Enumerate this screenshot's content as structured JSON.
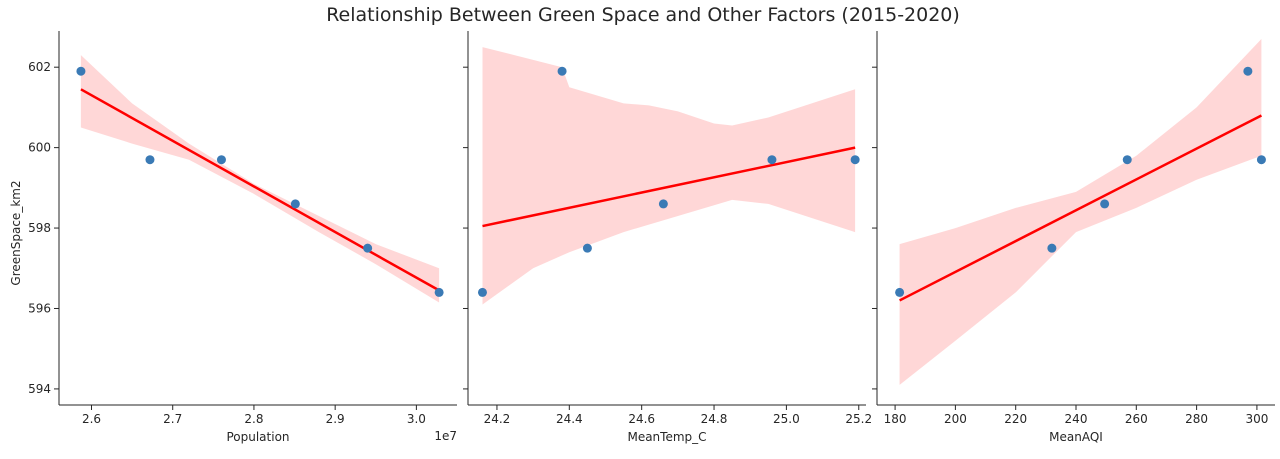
{
  "chart_data": {
    "type": "scatter",
    "title": "Relationship Between Green Space and Other Factors (2015-2020)",
    "ylabel": "GreenSpace_km2",
    "ylim": [
      593.6,
      602.9
    ],
    "yticks": [
      594,
      596,
      598,
      600,
      602
    ],
    "ytick_labels": [
      "594",
      "596",
      "598",
      "600",
      "602"
    ],
    "colors": {
      "points": "#3a7ab5",
      "fit_line": "#ff0000",
      "band": "#ff9c9c"
    },
    "panels": [
      {
        "xlabel": "Population",
        "offset_text": "1e7",
        "xlim": [
          2.56,
          3.05
        ],
        "xticks": [
          2.6,
          2.7,
          2.8,
          2.9,
          3.0
        ],
        "xtick_labels": [
          "2.6",
          "2.7",
          "2.8",
          "2.9",
          "3.0"
        ],
        "points": [
          {
            "x": 2.587,
            "y": 601.9
          },
          {
            "x": 2.672,
            "y": 599.7
          },
          {
            "x": 2.76,
            "y": 599.7
          },
          {
            "x": 2.851,
            "y": 598.6
          },
          {
            "x": 2.94,
            "y": 597.5
          },
          {
            "x": 3.028,
            "y": 596.4
          }
        ],
        "fit": [
          {
            "x": 2.587,
            "y": 601.45
          },
          {
            "x": 3.028,
            "y": 596.45
          }
        ],
        "band_upper": [
          {
            "x": 2.587,
            "y": 602.3
          },
          {
            "x": 2.65,
            "y": 601.1
          },
          {
            "x": 2.72,
            "y": 600.1
          },
          {
            "x": 2.8,
            "y": 599.1
          },
          {
            "x": 2.88,
            "y": 598.3
          },
          {
            "x": 2.95,
            "y": 597.6
          },
          {
            "x": 3.028,
            "y": 597.0
          }
        ],
        "band_lower": [
          {
            "x": 3.028,
            "y": 596.15
          },
          {
            "x": 2.95,
            "y": 597.1
          },
          {
            "x": 2.88,
            "y": 597.9
          },
          {
            "x": 2.8,
            "y": 598.85
          },
          {
            "x": 2.72,
            "y": 599.7
          },
          {
            "x": 2.65,
            "y": 600.1
          },
          {
            "x": 2.587,
            "y": 600.5
          }
        ]
      },
      {
        "xlabel": "MeanTemp_C",
        "offset_text": "",
        "xlim": [
          24.12,
          25.22
        ],
        "xticks": [
          24.2,
          24.4,
          24.6,
          24.8,
          25.0,
          25.2
        ],
        "xtick_labels": [
          "24.2",
          "24.4",
          "24.6",
          "24.8",
          "25.0",
          "25.2"
        ],
        "points": [
          {
            "x": 24.16,
            "y": 596.4
          },
          {
            "x": 24.38,
            "y": 601.9
          },
          {
            "x": 24.45,
            "y": 597.5
          },
          {
            "x": 24.66,
            "y": 598.6
          },
          {
            "x": 24.96,
            "y": 599.7
          },
          {
            "x": 25.19,
            "y": 599.7
          }
        ],
        "fit": [
          {
            "x": 24.16,
            "y": 598.05
          },
          {
            "x": 25.19,
            "y": 600.0
          }
        ],
        "band_upper": [
          {
            "x": 24.16,
            "y": 602.5
          },
          {
            "x": 24.38,
            "y": 602.0
          },
          {
            "x": 24.4,
            "y": 601.5
          },
          {
            "x": 24.55,
            "y": 601.1
          },
          {
            "x": 24.62,
            "y": 601.05
          },
          {
            "x": 24.7,
            "y": 600.9
          },
          {
            "x": 24.8,
            "y": 600.6
          },
          {
            "x": 24.85,
            "y": 600.55
          },
          {
            "x": 24.95,
            "y": 600.75
          },
          {
            "x": 25.19,
            "y": 601.45
          }
        ],
        "band_lower": [
          {
            "x": 25.19,
            "y": 597.9
          },
          {
            "x": 24.95,
            "y": 598.6
          },
          {
            "x": 24.85,
            "y": 598.7
          },
          {
            "x": 24.7,
            "y": 598.3
          },
          {
            "x": 24.55,
            "y": 597.9
          },
          {
            "x": 24.4,
            "y": 597.4
          },
          {
            "x": 24.3,
            "y": 597.0
          },
          {
            "x": 24.16,
            "y": 596.1
          }
        ]
      },
      {
        "xlabel": "MeanAQI",
        "offset_text": "",
        "xlim": [
          174,
          306
        ],
        "xticks": [
          180,
          200,
          220,
          240,
          260,
          280,
          300
        ],
        "xtick_labels": [
          "180",
          "200",
          "220",
          "240",
          "260",
          "280",
          "300"
        ],
        "points": [
          {
            "x": 181.5,
            "y": 596.4
          },
          {
            "x": 232,
            "y": 597.5
          },
          {
            "x": 249.5,
            "y": 598.6
          },
          {
            "x": 257,
            "y": 599.7
          },
          {
            "x": 297,
            "y": 601.9
          },
          {
            "x": 301.5,
            "y": 599.7
          }
        ],
        "fit": [
          {
            "x": 181.5,
            "y": 596.2
          },
          {
            "x": 301.5,
            "y": 600.8
          }
        ],
        "band_upper": [
          {
            "x": 181.5,
            "y": 597.6
          },
          {
            "x": 200,
            "y": 598.0
          },
          {
            "x": 220,
            "y": 598.5
          },
          {
            "x": 240,
            "y": 598.9
          },
          {
            "x": 260,
            "y": 599.8
          },
          {
            "x": 280,
            "y": 601.0
          },
          {
            "x": 301.5,
            "y": 602.7
          }
        ],
        "band_lower": [
          {
            "x": 301.5,
            "y": 599.8
          },
          {
            "x": 280,
            "y": 599.2
          },
          {
            "x": 260,
            "y": 598.5
          },
          {
            "x": 240,
            "y": 597.9
          },
          {
            "x": 220,
            "y": 596.4
          },
          {
            "x": 200,
            "y": 595.2
          },
          {
            "x": 181.5,
            "y": 594.1
          }
        ]
      }
    ]
  }
}
